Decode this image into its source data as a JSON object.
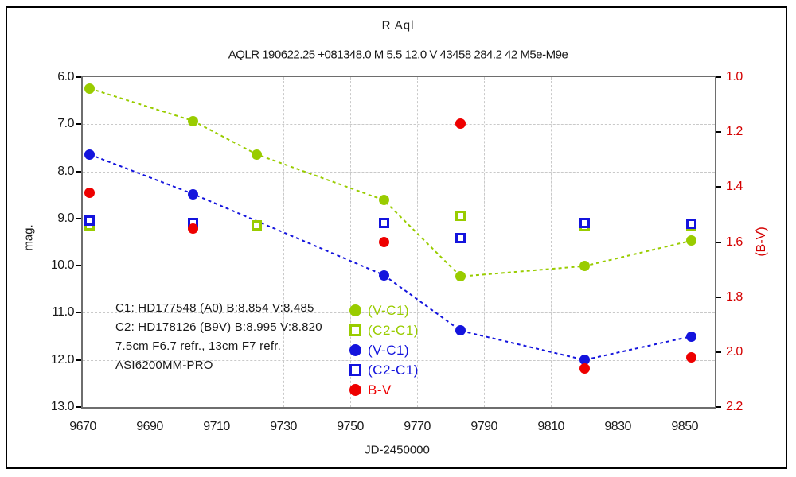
{
  "figure": {
    "title": "R Aql",
    "subtitle": "AQLR 190622.25 +081348.0 M 5.5 12.0 V 43458 284.2 42 M5e-M9e"
  },
  "colors": {
    "green": "#99cc00",
    "blue": "#1414dd",
    "red": "#ee0000",
    "red_label": "#d40000",
    "grid": "#c9c9c9",
    "plot_border": "#6e6e6e",
    "text": "#1a1a1a"
  },
  "chart_data": {
    "type": "scatter",
    "title": "R Aql",
    "subtitle": "AQLR 190622.25 +081348.0 M 5.5 12.0 V 43458 284.2 42 M5e-M9e",
    "xlabel": "JD-2450000",
    "ylabel_left": "mag.",
    "ylabel_right": "(B-V)",
    "xlim": [
      9670,
      9859
    ],
    "ylim_left": [
      6.0,
      13.0
    ],
    "ylim_right": [
      1.0,
      2.2
    ],
    "y_axis_inverted_display": "magnitude increases downward",
    "grid": true,
    "x_ticks": [
      9670,
      9690,
      9710,
      9730,
      9750,
      9770,
      9790,
      9810,
      9830,
      9850
    ],
    "y_ticks_left": [
      "6.0",
      "7.0",
      "8.0",
      "9.0",
      "10.0",
      "11.0",
      "12.0",
      "13.0"
    ],
    "y_ticks_right": [
      "1.0",
      "1.2",
      "1.4",
      "1.6",
      "1.8",
      "2.0",
      "2.2"
    ],
    "series": [
      {
        "name": "(V-C1)",
        "id": "v-c1-green",
        "color": "#99cc00",
        "marker": "circle-filled",
        "line": "dashed",
        "axis": "left",
        "zorder": 3,
        "points": [
          [
            9672,
            6.24
          ],
          [
            9703,
            6.93
          ],
          [
            9722,
            7.64
          ],
          [
            9760,
            8.61
          ],
          [
            9783,
            10.23
          ],
          [
            9820,
            10.01
          ],
          [
            9852,
            9.47
          ]
        ]
      },
      {
        "name": "(C2-C1)",
        "id": "c2-c1-green",
        "color": "#99cc00",
        "marker": "square-open",
        "line": "none",
        "axis": "left",
        "zorder": 1,
        "points": [
          [
            9672,
            9.15
          ],
          [
            9703,
            9.13
          ],
          [
            9722,
            9.14
          ],
          [
            9783,
            8.95
          ],
          [
            9820,
            9.16
          ],
          [
            9852,
            9.16
          ]
        ]
      },
      {
        "name": "(V-C1)",
        "id": "v-c1-blue",
        "color": "#1414dd",
        "marker": "circle-filled",
        "line": "dashed",
        "axis": "left",
        "zorder": 4,
        "points": [
          [
            9672,
            7.64
          ],
          [
            9703,
            8.48
          ],
          [
            9760,
            10.2
          ],
          [
            9783,
            11.38
          ],
          [
            9820,
            12.0
          ],
          [
            9852,
            11.5
          ]
        ]
      },
      {
        "name": "(C2-C1)",
        "id": "c2-c1-blue",
        "color": "#1414dd",
        "marker": "square-open",
        "line": "none",
        "axis": "left",
        "zorder": 2,
        "points": [
          [
            9672,
            9.04
          ],
          [
            9703,
            9.1
          ],
          [
            9760,
            9.09
          ],
          [
            9783,
            9.42
          ],
          [
            9820,
            9.1
          ],
          [
            9852,
            9.12
          ]
        ]
      },
      {
        "name": "B-V",
        "id": "b-v-red",
        "color": "#ee0000",
        "marker": "circle-filled",
        "line": "none",
        "axis": "right",
        "zorder": 5,
        "points": [
          [
            9672,
            1.42
          ],
          [
            9703,
            1.55
          ],
          [
            9760,
            1.6
          ],
          [
            9783,
            1.17
          ],
          [
            9820,
            2.06
          ],
          [
            9852,
            2.02
          ]
        ]
      }
    ],
    "legend": {
      "position": "inside-bottom-center",
      "items": [
        {
          "label": "(V-C1)",
          "marker": "circle-filled",
          "color": "#99cc00"
        },
        {
          "label": "(C2-C1)",
          "marker": "square-open",
          "color": "#99cc00"
        },
        {
          "label": "(V-C1)",
          "marker": "circle-filled",
          "color": "#1414dd"
        },
        {
          "label": "(C2-C1)",
          "marker": "square-open",
          "color": "#1414dd"
        },
        {
          "label": "B-V",
          "marker": "circle-filled",
          "color": "#ee0000"
        }
      ]
    },
    "annotations": {
      "lines": [
        "C1: HD177548 (A0)  B:8.854 V:8.485",
        "C2: HD178126 (B9V)  B:8.995 V:8.820",
        "7.5cm F6.7 refr., 13cm F7 refr.",
        "ASI6200MM-PRO"
      ]
    }
  }
}
